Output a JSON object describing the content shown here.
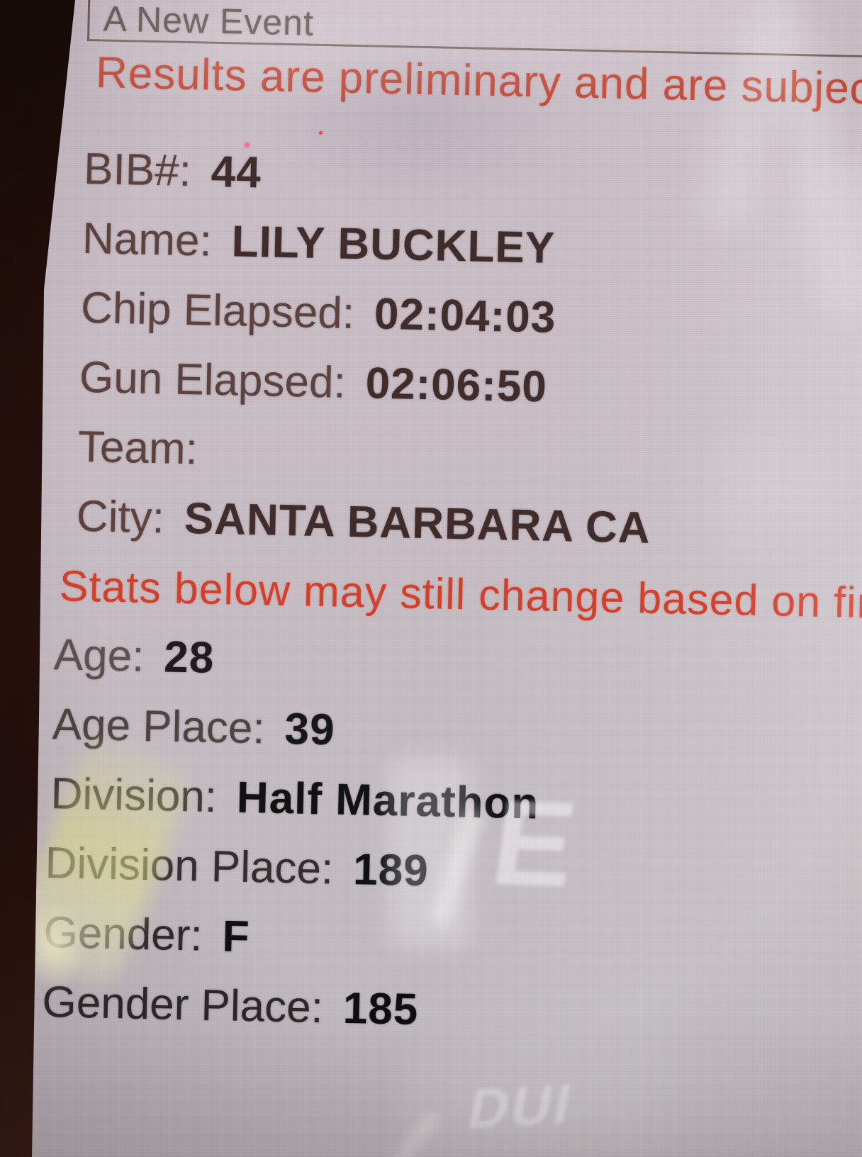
{
  "event": {
    "title": "A New Event"
  },
  "notices": {
    "preliminary": "Results are preliminary and are subject to",
    "stats_change": "Stats below may still change based on fin"
  },
  "result_fields": [
    {
      "label": "BIB#:",
      "value": "44"
    },
    {
      "label": "Name:",
      "value": "LILY BUCKLEY"
    },
    {
      "label": "Chip Elapsed:",
      "value": "02:04:03"
    },
    {
      "label": "Gun Elapsed:",
      "value": "02:06:50"
    },
    {
      "label": "Team:",
      "value": ""
    },
    {
      "label": "City:",
      "value": "SANTA BARBARA CA"
    }
  ],
  "stats_fields": [
    {
      "label": "Age:",
      "value": "28"
    },
    {
      "label": "Age Place:",
      "value": "39"
    },
    {
      "label": "Division:",
      "value": "Half Marathon"
    },
    {
      "label": "Division Place:",
      "value": "189"
    },
    {
      "label": "Gender:",
      "value": "F"
    },
    {
      "label": "Gender Place:",
      "value": "185"
    }
  ],
  "reflections": {
    "letter": "E",
    "word": "DUI"
  },
  "colors": {
    "notice_red": "#c14938",
    "stats_red": "#d1402c",
    "label_brown": "#5c423f",
    "value_dark": "#0e0e11",
    "screen_bg": "#c7bcc3",
    "bezel_brown": "#3a1713"
  }
}
